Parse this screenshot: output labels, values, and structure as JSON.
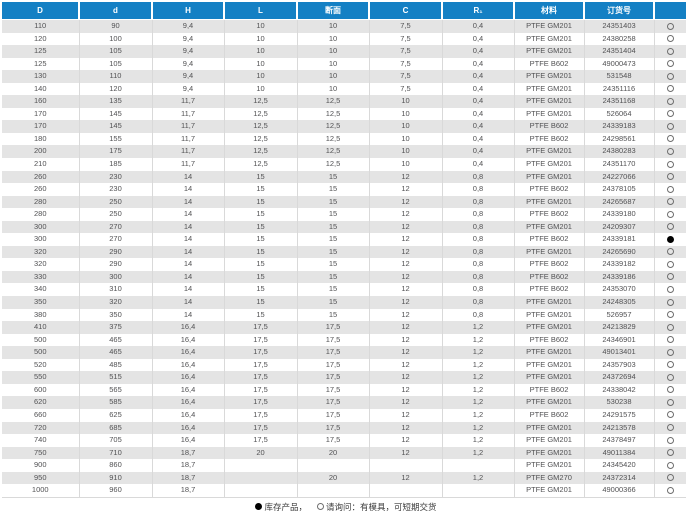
{
  "colors": {
    "header_bg": "#1480c4",
    "header_text": "#ffffff",
    "row_stripe": "#e4e4e4",
    "body_text": "#525254",
    "grid_line": "#d9d9d9",
    "stock_dot": "#000000"
  },
  "table": {
    "headers": [
      "D",
      "d",
      "H",
      "L",
      "断面",
      "C",
      "R₁",
      "材料",
      "订货号",
      ""
    ],
    "column_keys": [
      "D",
      "d",
      "H",
      "L",
      "section",
      "C",
      "R1",
      "material",
      "order_no",
      "status"
    ],
    "rows": [
      [
        "110",
        "90",
        "9,4",
        "10",
        "10",
        "7,5",
        "0,4",
        "PTFE GM201",
        "24351403",
        "○"
      ],
      [
        "120",
        "100",
        "9,4",
        "10",
        "10",
        "7,5",
        "0,4",
        "PTFE GM201",
        "24380258",
        "○"
      ],
      [
        "125",
        "105",
        "9,4",
        "10",
        "10",
        "7,5",
        "0,4",
        "PTFE GM201",
        "24351404",
        "○"
      ],
      [
        "125",
        "105",
        "9,4",
        "10",
        "10",
        "7,5",
        "0,4",
        "PTFE B602",
        "49000473",
        "○"
      ],
      [
        "130",
        "110",
        "9,4",
        "10",
        "10",
        "7,5",
        "0,4",
        "PTFE GM201",
        "531548",
        "○"
      ],
      [
        "140",
        "120",
        "9,4",
        "10",
        "10",
        "7,5",
        "0,4",
        "PTFE GM201",
        "24351116",
        "○"
      ],
      [
        "160",
        "135",
        "11,7",
        "12,5",
        "12,5",
        "10",
        "0,4",
        "PTFE GM201",
        "24351168",
        "○"
      ],
      [
        "170",
        "145",
        "11,7",
        "12,5",
        "12,5",
        "10",
        "0,4",
        "PTFE GM201",
        "526064",
        "○"
      ],
      [
        "170",
        "145",
        "11,7",
        "12,5",
        "12,5",
        "10",
        "0,4",
        "PTFE B602",
        "24339183",
        "○"
      ],
      [
        "180",
        "155",
        "11,7",
        "12,5",
        "12,5",
        "10",
        "0,4",
        "PTFE B602",
        "24298561",
        "○"
      ],
      [
        "200",
        "175",
        "11,7",
        "12,5",
        "12,5",
        "10",
        "0,4",
        "PTFE GM201",
        "24380283",
        "○"
      ],
      [
        "210",
        "185",
        "11,7",
        "12,5",
        "12,5",
        "10",
        "0,4",
        "PTFE GM201",
        "24351170",
        "○"
      ],
      [
        "260",
        "230",
        "14",
        "15",
        "15",
        "12",
        "0,8",
        "PTFE GM201",
        "24227066",
        "○"
      ],
      [
        "260",
        "230",
        "14",
        "15",
        "15",
        "12",
        "0,8",
        "PTFE B602",
        "24378105",
        "○"
      ],
      [
        "280",
        "250",
        "14",
        "15",
        "15",
        "12",
        "0,8",
        "PTFE GM201",
        "24265687",
        "○"
      ],
      [
        "280",
        "250",
        "14",
        "15",
        "15",
        "12",
        "0,8",
        "PTFE B602",
        "24339180",
        "○"
      ],
      [
        "300",
        "270",
        "14",
        "15",
        "15",
        "12",
        "0,8",
        "PTFE GM201",
        "24209307",
        "○"
      ],
      [
        "300",
        "270",
        "14",
        "15",
        "15",
        "12",
        "0,8",
        "PTFE B602",
        "24339181",
        "●"
      ],
      [
        "320",
        "290",
        "14",
        "15",
        "15",
        "12",
        "0,8",
        "PTFE GM201",
        "24265690",
        "○"
      ],
      [
        "320",
        "290",
        "14",
        "15",
        "15",
        "12",
        "0,8",
        "PTFE B602",
        "24339182",
        "○"
      ],
      [
        "330",
        "300",
        "14",
        "15",
        "15",
        "12",
        "0,8",
        "PTFE B602",
        "24339186",
        "○"
      ],
      [
        "340",
        "310",
        "14",
        "15",
        "15",
        "12",
        "0,8",
        "PTFE B602",
        "24353070",
        "○"
      ],
      [
        "350",
        "320",
        "14",
        "15",
        "15",
        "12",
        "0,8",
        "PTFE GM201",
        "24248305",
        "○"
      ],
      [
        "380",
        "350",
        "14",
        "15",
        "15",
        "12",
        "0,8",
        "PTFE GM201",
        "526957",
        "○"
      ],
      [
        "410",
        "375",
        "16,4",
        "17,5",
        "17,5",
        "12",
        "1,2",
        "PTFE GM201",
        "24213829",
        "○"
      ],
      [
        "500",
        "465",
        "16,4",
        "17,5",
        "17,5",
        "12",
        "1,2",
        "PTFE B602",
        "24346901",
        "○"
      ],
      [
        "500",
        "465",
        "16,4",
        "17,5",
        "17,5",
        "12",
        "1,2",
        "PTFE GM201",
        "49013401",
        "○"
      ],
      [
        "520",
        "485",
        "16,4",
        "17,5",
        "17,5",
        "12",
        "1,2",
        "PTFE GM201",
        "24357903",
        "○"
      ],
      [
        "550",
        "515",
        "16,4",
        "17,5",
        "17,5",
        "12",
        "1,2",
        "PTFE GM201",
        "24372694",
        "○"
      ],
      [
        "600",
        "565",
        "16,4",
        "17,5",
        "17,5",
        "12",
        "1,2",
        "PTFE B602",
        "24338042",
        "○"
      ],
      [
        "620",
        "585",
        "16,4",
        "17,5",
        "17,5",
        "12",
        "1,2",
        "PTFE GM201",
        "530238",
        "○"
      ],
      [
        "660",
        "625",
        "16,4",
        "17,5",
        "17,5",
        "12",
        "1,2",
        "PTFE B602",
        "24291575",
        "○"
      ],
      [
        "720",
        "685",
        "16,4",
        "17,5",
        "17,5",
        "12",
        "1,2",
        "PTFE GM201",
        "24213578",
        "○"
      ],
      [
        "740",
        "705",
        "16,4",
        "17,5",
        "17,5",
        "12",
        "1,2",
        "PTFE GM201",
        "24378497",
        "○"
      ],
      [
        "750",
        "710",
        "18,7",
        "20",
        "20",
        "12",
        "1,2",
        "PTFE GM201",
        "49011384",
        "○"
      ],
      [
        "900",
        "860",
        "18,7",
        "",
        "",
        "",
        "",
        "PTFE GM201",
        "24345420",
        "○"
      ],
      [
        "950",
        "910",
        "18,7",
        "",
        "20",
        "12",
        "1,2",
        "PTFE GM270",
        "24372314",
        "○"
      ],
      [
        "1000",
        "960",
        "18,7",
        "",
        "",
        "",
        "",
        "PTFE GM201",
        "49000366",
        "○"
      ]
    ]
  },
  "legend": {
    "in_stock_symbol": "●",
    "in_stock_label": "库存产品，",
    "on_request_symbol": "○",
    "on_request_label": "请询问：有模具，可短期交货"
  }
}
